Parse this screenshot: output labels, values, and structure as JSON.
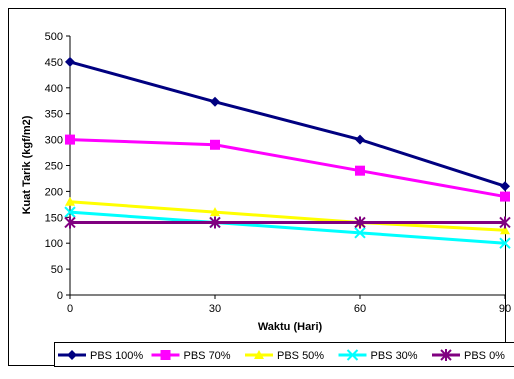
{
  "chart_data": {
    "type": "line",
    "title": "",
    "xlabel": "Waktu (Hari)",
    "ylabel": "Kuat Tarik (kgf/m2)",
    "x": [
      0,
      30,
      60,
      90
    ],
    "xlim": [
      0,
      90
    ],
    "ylim": [
      0,
      500
    ],
    "yticks": [
      0,
      50,
      100,
      150,
      200,
      250,
      300,
      350,
      400,
      450,
      500
    ],
    "grid": false,
    "legend_position": "bottom",
    "series": [
      {
        "name": "PBS 100%",
        "values": [
          450,
          373,
          300,
          210
        ],
        "color": "#000080",
        "marker": "diamond"
      },
      {
        "name": "PBS 70%",
        "values": [
          300,
          290,
          240,
          190
        ],
        "color": "#FF00FF",
        "marker": "square"
      },
      {
        "name": "PBS 50%",
        "values": [
          180,
          160,
          140,
          125
        ],
        "color": "#FFFF00",
        "marker": "triangle"
      },
      {
        "name": "PBS 30%",
        "values": [
          160,
          140,
          120,
          100
        ],
        "color": "#00FFFF",
        "marker": "x"
      },
      {
        "name": "PBS 0%",
        "values": [
          140,
          140,
          140,
          140
        ],
        "color": "#800080",
        "marker": "star"
      }
    ]
  }
}
